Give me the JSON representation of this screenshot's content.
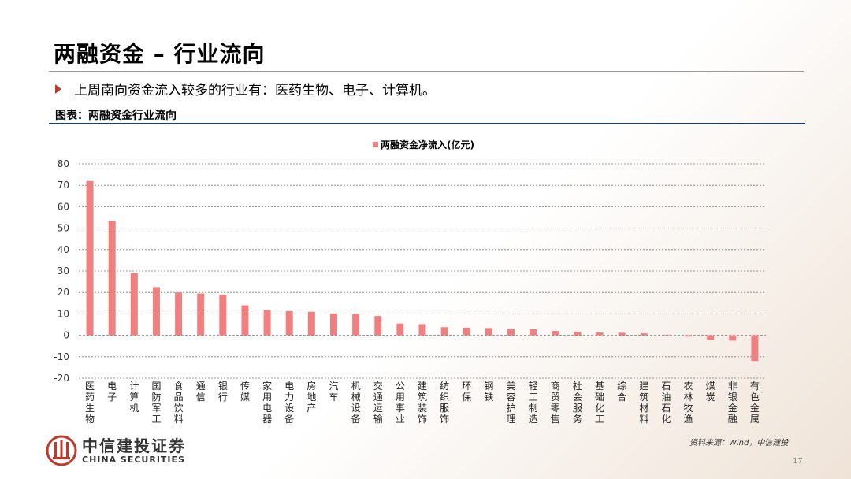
{
  "slide": {
    "title": "两融资金 – 行业流向",
    "bullet": "上周南向资金流入较多的行业有：医药生物、电子、计算机。",
    "caption": "图表：两融资金行业流向",
    "source": "资料来源：Wind，中信建投",
    "page_number": "17"
  },
  "logo": {
    "cn": "中信建投证券",
    "en": "CHINA SECURITIES"
  },
  "colors": {
    "bar": "#f08080",
    "caption_rule": "#1f3a5a",
    "bullet": "#c0392b"
  },
  "chart_data": {
    "type": "bar",
    "legend": "两融资金净流入(亿元)",
    "legend_position": "top-center",
    "ylim": [
      -20,
      80
    ],
    "yticks": [
      80,
      70,
      60,
      50,
      40,
      30,
      20,
      10,
      0,
      -10,
      -20
    ],
    "grid": true,
    "categories": [
      "医药生物",
      "电子",
      "计算机",
      "国防军工",
      "食品饮料",
      "通信",
      "银行",
      "传媒",
      "家用电器",
      "电力设备",
      "房地产",
      "汽车",
      "机械设备",
      "交通运输",
      "公用事业",
      "建筑装饰",
      "纺织服饰",
      "环保",
      "钢铁",
      "美容护理",
      "轻工制造",
      "商贸零售",
      "社会服务",
      "基础化工",
      "综合",
      "建筑材料",
      "石油石化",
      "农林牧渔",
      "煤炭",
      "非银金融",
      "有色金属"
    ],
    "values": [
      72,
      53.5,
      29,
      22.5,
      20,
      19.5,
      19,
      14,
      11.8,
      11.3,
      11,
      10.2,
      10,
      9,
      5.5,
      5.2,
      3.8,
      3.6,
      3.4,
      3.1,
      2.8,
      2.0,
      1.6,
      1.3,
      1.2,
      0.9,
      0.3,
      -0.6,
      -2.2,
      -2.5,
      -12
    ]
  }
}
